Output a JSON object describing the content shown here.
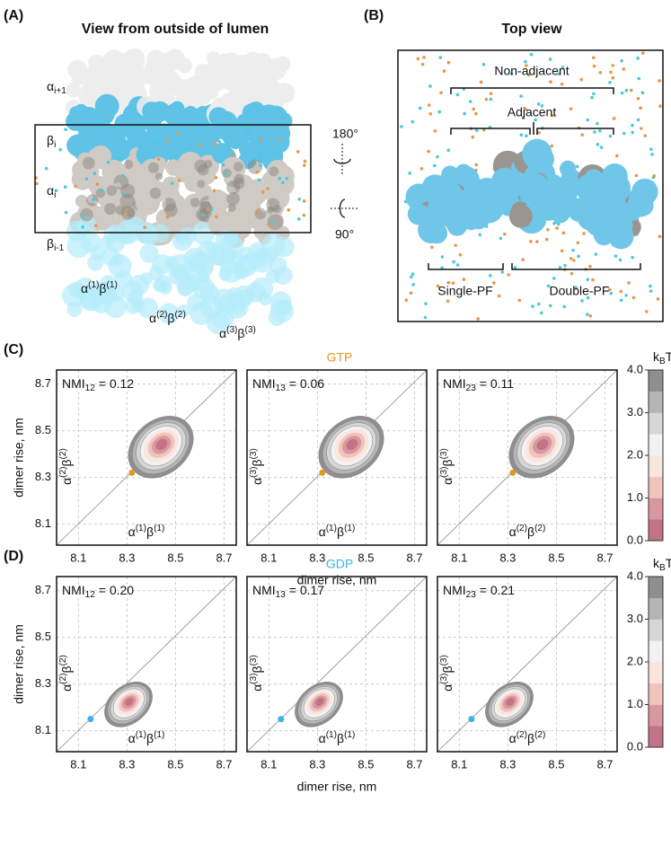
{
  "panel_a": {
    "tag": "(A)",
    "title": "View from outside of lumen",
    "rows": [
      {
        "base": "α",
        "sub": "i+1"
      },
      {
        "base": "β",
        "sub": "i"
      },
      {
        "base": "α",
        "sub": "i"
      },
      {
        "base": "β",
        "sub": "i-1"
      }
    ],
    "dimers": [
      [
        {
          "base": "α",
          "sup": "(1)"
        },
        {
          "base": "β",
          "sup": "(1)"
        }
      ],
      [
        {
          "base": "α",
          "sup": "(2)"
        },
        {
          "base": "β",
          "sup": "(2)"
        }
      ],
      [
        {
          "base": "α",
          "sup": "(3)"
        },
        {
          "base": "β",
          "sup": "(3)"
        }
      ]
    ],
    "rotations": [
      "180°",
      "90°"
    ]
  },
  "panel_b": {
    "tag": "(B)",
    "title": "Top view",
    "non_adjacent": "Non-adjacent",
    "adjacent": "Adjacent",
    "single_pf": "Single-PF",
    "double_pf": "Double-PF"
  },
  "rows": [
    {
      "tag": "(C)",
      "state": "GTP",
      "state_color": "#e39a1c",
      "y_axis_label": "dimer rise, nm",
      "x_axis_label": "dimer rise, nm",
      "xlim": [
        8.01,
        8.75
      ],
      "ylim": [
        8.01,
        8.76
      ],
      "xticks": [
        8.1,
        8.3,
        8.5,
        8.7
      ],
      "yticks": [
        8.1,
        8.3,
        8.5,
        8.7
      ],
      "colorbar": {
        "label": {
          "base": "k",
          "sub": "B",
          "rest": "T"
        },
        "lim": [
          0,
          4
        ],
        "ticks": [
          {
            "value": 0,
            "label": "0.0"
          },
          {
            "value": 1,
            "label": "1.0"
          },
          {
            "value": 2,
            "label": "2.0"
          },
          {
            "value": 3,
            "label": "3.0"
          },
          {
            "value": 4,
            "label": "4.0"
          }
        ]
      },
      "plots": [
        {
          "nmi": {
            "base": "NMI",
            "sub": "12",
            "rest": " = 0.12"
          },
          "x_label": [
            {
              "base": "α",
              "sup": "(1)"
            },
            {
              "base": "β",
              "sup": "(1)"
            }
          ],
          "y_label": [
            {
              "base": "α",
              "sup": "(2)"
            },
            {
              "base": "β",
              "sup": "(2)"
            }
          ],
          "point": [
            8.32,
            8.32
          ]
        },
        {
          "nmi": {
            "base": "NMI",
            "sub": "13",
            "rest": " = 0.06"
          },
          "x_label": [
            {
              "base": "α",
              "sup": "(1)"
            },
            {
              "base": "β",
              "sup": "(1)"
            }
          ],
          "y_label": [
            {
              "base": "α",
              "sup": "(3)"
            },
            {
              "base": "β",
              "sup": "(3)"
            }
          ],
          "point": [
            8.32,
            8.32
          ]
        },
        {
          "nmi": {
            "base": "NMI",
            "sub": "23",
            "rest": " = 0.11"
          },
          "x_label": [
            {
              "base": "α",
              "sup": "(2)"
            },
            {
              "base": "β",
              "sup": "(2)"
            }
          ],
          "y_label": [
            {
              "base": "α",
              "sup": "(3)"
            },
            {
              "base": "β",
              "sup": "(3)"
            }
          ],
          "point": [
            8.32,
            8.32
          ]
        }
      ]
    },
    {
      "tag": "(D)",
      "state": "GDP",
      "state_color": "#3bb4e6",
      "y_axis_label": "dimer rise, nm",
      "x_axis_label": "dimer rise, nm",
      "xlim": [
        8.01,
        8.75
      ],
      "ylim": [
        8.01,
        8.76
      ],
      "xticks": [
        8.1,
        8.3,
        8.5,
        8.7
      ],
      "yticks": [
        8.1,
        8.3,
        8.5,
        8.7
      ],
      "colorbar": {
        "label": {
          "base": "k",
          "sub": "B",
          "rest": "T"
        },
        "lim": [
          0,
          4
        ],
        "ticks": [
          {
            "value": 0,
            "label": "0.0"
          },
          {
            "value": 1,
            "label": "1.0"
          },
          {
            "value": 2,
            "label": "2.0"
          },
          {
            "value": 3,
            "label": "3.0"
          },
          {
            "value": 4,
            "label": "4.0"
          }
        ]
      },
      "plots": [
        {
          "nmi": {
            "base": "NMI",
            "sub": "12",
            "rest": " = 0.20"
          },
          "x_label": [
            {
              "base": "α",
              "sup": "(1)"
            },
            {
              "base": "β",
              "sup": "(1)"
            }
          ],
          "y_label": [
            {
              "base": "α",
              "sup": "(2)"
            },
            {
              "base": "β",
              "sup": "(2)"
            }
          ],
          "point": [
            8.15,
            8.15
          ]
        },
        {
          "nmi": {
            "base": "NMI",
            "sub": "13",
            "rest": " = 0.17"
          },
          "x_label": [
            {
              "base": "α",
              "sup": "(1)"
            },
            {
              "base": "β",
              "sup": "(1)"
            }
          ],
          "y_label": [
            {
              "base": "α",
              "sup": "(3)"
            },
            {
              "base": "β",
              "sup": "(3)"
            }
          ],
          "point": [
            8.15,
            8.15
          ]
        },
        {
          "nmi": {
            "base": "NMI",
            "sub": "23",
            "rest": " = 0.21"
          },
          "x_label": [
            {
              "base": "α",
              "sup": "(2)"
            },
            {
              "base": "β",
              "sup": "(2)"
            }
          ],
          "y_label": [
            {
              "base": "α",
              "sup": "(3)"
            },
            {
              "base": "β",
              "sup": "(3)"
            }
          ],
          "point": [
            8.15,
            8.15
          ]
        }
      ]
    }
  ]
}
